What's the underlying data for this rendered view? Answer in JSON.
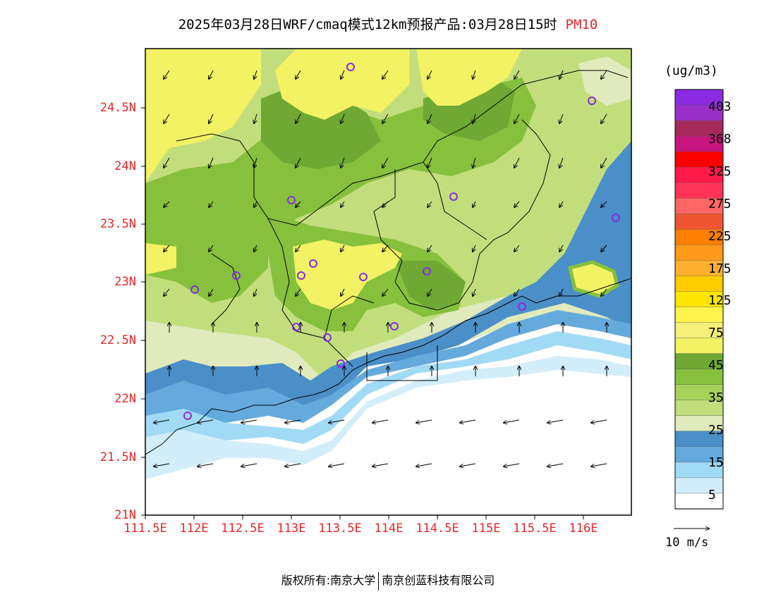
{
  "title": {
    "text": "2025年03月28日WRF/cmaq模式12km预报产品:03月28日15时",
    "variable": "PM10"
  },
  "axes": {
    "lat_labels": [
      "24.5N",
      "24N",
      "23.5N",
      "23N",
      "22.5N",
      "22N",
      "21.5N",
      "21N"
    ],
    "lon_labels": [
      "111.5E",
      "112E",
      "112.5E",
      "113E",
      "113.5E",
      "114E",
      "114.5E",
      "115E",
      "115.5E",
      "116E"
    ]
  },
  "colorbar": {
    "unit": "(ug/m3)",
    "labels": [
      "403",
      "368",
      "325",
      "275",
      "225",
      "175",
      "125",
      "75",
      "45",
      "35",
      "25",
      "15",
      "5"
    ],
    "colors": [
      "#8a2be2",
      "#9b30c9",
      "#a52a5a",
      "#c8167e",
      "#ff0000",
      "#ff1a4a",
      "#ff3355",
      "#ff6666",
      "#ee5533",
      "#ff7f00",
      "#ff9a1a",
      "#ffb02e",
      "#ffcc00",
      "#ffe600",
      "#fff34d",
      "#f5f07a",
      "#f2f264",
      "#6fa832",
      "#86c03c",
      "#a6d25a",
      "#c2de7c",
      "#e0eabc",
      "#4a8fc8",
      "#64aadc",
      "#a0daf5",
      "#d2eefa",
      "#ffffff"
    ]
  },
  "wind_reference": {
    "label": "10 m/s"
  },
  "footer": {
    "left": "版权所有:南京大学",
    "right": "南京创蓝科技有限公司"
  },
  "stations": {
    "marker_color": "#8a2be2",
    "count": 17
  }
}
